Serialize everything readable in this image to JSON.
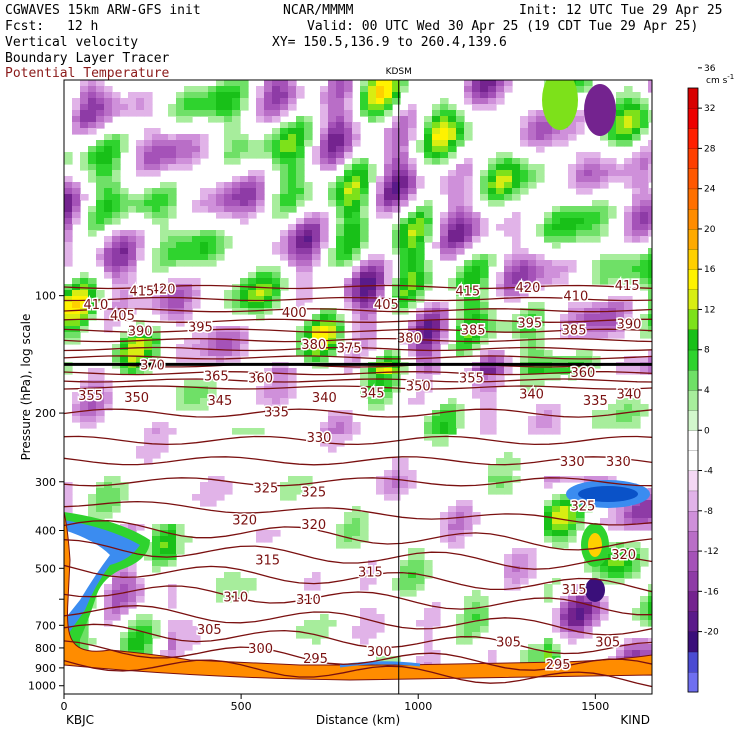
{
  "header": {
    "model": "CGWAVES 15km ARW-GFS init",
    "center": "NCAR/MMMM",
    "init": "Init: 12 UTC Tue 29 Apr 25",
    "fcst_label": "Fcst:",
    "fcst_value": "12 h",
    "valid": "Valid: 00 UTC Wed 30 Apr 25 (19 CDT Tue 29 Apr 25)",
    "field1": "Vertical velocity",
    "xy": "XY= 150.5,136.9 to 260.4,139.6",
    "field2": "Boundary Layer Tracer",
    "field3": "Potential Temperature"
  },
  "chart_data": {
    "type": "heatmap",
    "title": "",
    "xlabel": "Distance (km)",
    "ylabel": "Pressure (hPa), log scale",
    "y_scale": "log",
    "xlim": [
      0,
      1660
    ],
    "ylim": [
      1050,
      28
    ],
    "x_ticks": [
      0,
      500,
      1000,
      1500
    ],
    "y_ticks": [
      100,
      200,
      300,
      400,
      500,
      600,
      700,
      800,
      900,
      1000
    ],
    "y_tick_labels": [
      "100",
      "200",
      "300",
      "400",
      "500",
      "700",
      "800",
      "900",
      "1000"
    ],
    "station_left": "KBJC",
    "station_right": "KIND",
    "station_top": "KDSM",
    "station_top_x": 945,
    "colorbar": {
      "unit_label": "cm s",
      "unit_sup": "-1",
      "labels": [
        "-20",
        "-16",
        "-12",
        "-8",
        "-4",
        "0",
        "4",
        "8",
        "12",
        "16",
        "20",
        "24",
        "28",
        "32",
        "36"
      ],
      "bin_colors": [
        "#6f6ff0",
        "#4b4bd2",
        "#3a0f7a",
        "#5a1a8a",
        "#74238f",
        "#8e3ba6",
        "#a552b8",
        "#b96ec7",
        "#cf90da",
        "#e1b3e8",
        "#f4d8f4",
        "#ffffff",
        "#ffffff",
        "#d2f7cc",
        "#a7ed9c",
        "#6fe067",
        "#2fd32e",
        "#18c018",
        "#7de11a",
        "#d8ed12",
        "#fff200",
        "#ffd000",
        "#ffaa00",
        "#ff8c00",
        "#ff7000",
        "#ff5800",
        "#ff3f00",
        "#ff2000",
        "#ee0000",
        "#d80000"
      ]
    },
    "theta_labels": [
      {
        "v": "420",
        "x": 280,
        "p": 96
      },
      {
        "v": "415",
        "x": 220,
        "p": 97
      },
      {
        "v": "410",
        "x": 90,
        "p": 105
      },
      {
        "v": "405",
        "x": 165,
        "p": 112
      },
      {
        "v": "400",
        "x": 650,
        "p": 110
      },
      {
        "v": "405",
        "x": 910,
        "p": 105
      },
      {
        "v": "415",
        "x": 1140,
        "p": 97
      },
      {
        "v": "420",
        "x": 1310,
        "p": 95
      },
      {
        "v": "410",
        "x": 1445,
        "p": 100
      },
      {
        "v": "415",
        "x": 1590,
        "p": 94
      },
      {
        "v": "390",
        "x": 215,
        "p": 123
      },
      {
        "v": "395",
        "x": 385,
        "p": 120
      },
      {
        "v": "385",
        "x": 1155,
        "p": 122
      },
      {
        "v": "395",
        "x": 1315,
        "p": 117
      },
      {
        "v": "385",
        "x": 1440,
        "p": 122
      },
      {
        "v": "390",
        "x": 1595,
        "p": 118
      },
      {
        "v": "380",
        "x": 705,
        "p": 133
      },
      {
        "v": "375",
        "x": 805,
        "p": 136
      },
      {
        "v": "380",
        "x": 975,
        "p": 128
      },
      {
        "v": "370",
        "x": 250,
        "p": 150
      },
      {
        "v": "365",
        "x": 430,
        "p": 160
      },
      {
        "v": "360",
        "x": 555,
        "p": 162
      },
      {
        "v": "355",
        "x": 1150,
        "p": 162
      },
      {
        "v": "360",
        "x": 1465,
        "p": 157
      },
      {
        "v": "355",
        "x": 75,
        "p": 180
      },
      {
        "v": "350",
        "x": 205,
        "p": 182
      },
      {
        "v": "345",
        "x": 440,
        "p": 185
      },
      {
        "v": "340",
        "x": 735,
        "p": 182
      },
      {
        "v": "345",
        "x": 870,
        "p": 177
      },
      {
        "v": "350",
        "x": 1000,
        "p": 170
      },
      {
        "v": "340",
        "x": 1320,
        "p": 178
      },
      {
        "v": "335",
        "x": 1500,
        "p": 185
      },
      {
        "v": "340",
        "x": 1595,
        "p": 178
      },
      {
        "v": "335",
        "x": 600,
        "p": 198
      },
      {
        "v": "330",
        "x": 720,
        "p": 230
      },
      {
        "v": "330",
        "x": 1435,
        "p": 265
      },
      {
        "v": "330",
        "x": 1565,
        "p": 265
      },
      {
        "v": "325",
        "x": 570,
        "p": 310
      },
      {
        "v": "325",
        "x": 705,
        "p": 318
      },
      {
        "v": "325",
        "x": 1465,
        "p": 345
      },
      {
        "v": "320",
        "x": 510,
        "p": 375
      },
      {
        "v": "320",
        "x": 705,
        "p": 385
      },
      {
        "v": "320",
        "x": 1580,
        "p": 460
      },
      {
        "v": "315",
        "x": 575,
        "p": 475
      },
      {
        "v": "315",
        "x": 865,
        "p": 510
      },
      {
        "v": "315",
        "x": 1440,
        "p": 565
      },
      {
        "v": "310",
        "x": 485,
        "p": 590
      },
      {
        "v": "310",
        "x": 690,
        "p": 600
      },
      {
        "v": "305",
        "x": 410,
        "p": 715
      },
      {
        "v": "305",
        "x": 1255,
        "p": 770
      },
      {
        "v": "305",
        "x": 1535,
        "p": 770
      },
      {
        "v": "300",
        "x": 555,
        "p": 800
      },
      {
        "v": "300",
        "x": 890,
        "p": 815
      },
      {
        "v": "295",
        "x": 710,
        "p": 850
      },
      {
        "v": "295",
        "x": 1395,
        "p": 880
      }
    ]
  }
}
